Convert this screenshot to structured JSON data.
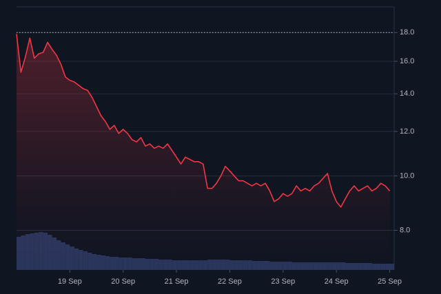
{
  "chart_data": {
    "type": "line",
    "log_scale": true,
    "grid": true,
    "series": [
      {
        "color": "#f23645",
        "values": [
          17.9,
          15.3,
          16.3,
          17.6,
          16.2,
          16.5,
          16.6,
          17.3,
          16.8,
          16.4,
          15.8,
          15.0,
          14.8,
          14.7,
          14.5,
          14.3,
          14.2,
          13.8,
          13.3,
          12.8,
          12.5,
          12.1,
          12.3,
          11.9,
          12.1,
          11.9,
          11.6,
          11.5,
          11.7,
          11.3,
          11.4,
          11.2,
          11.3,
          11.2,
          11.4,
          11.1,
          10.8,
          10.5,
          10.8,
          10.7,
          10.6,
          10.6,
          10.5,
          9.5,
          9.5,
          9.7,
          10.0,
          10.4,
          10.2,
          10.0,
          9.8,
          9.8,
          9.7,
          9.6,
          9.7,
          9.6,
          9.7,
          9.4,
          9.0,
          9.1,
          9.3,
          9.2,
          9.3,
          9.6,
          9.4,
          9.5,
          9.4,
          9.6,
          9.7,
          9.9,
          10.1,
          9.4,
          9.0,
          8.8,
          9.1,
          9.4,
          9.6,
          9.4,
          9.5,
          9.6,
          9.4,
          9.5,
          9.7,
          9.6,
          9.4
        ]
      }
    ],
    "volume": {
      "color": "#2e3b66",
      "values": [
        48,
        50,
        52,
        53,
        54,
        55,
        54,
        51,
        47,
        43,
        40,
        37,
        34,
        31,
        29,
        27,
        25,
        23,
        22,
        21,
        20,
        19,
        19,
        18,
        18,
        18,
        17,
        17,
        17,
        16,
        16,
        16,
        15,
        15,
        15,
        14,
        14,
        14,
        14,
        14,
        14,
        14,
        14,
        15,
        15,
        15,
        15,
        15,
        14,
        14,
        14,
        14,
        14,
        13,
        13,
        13,
        13,
        12,
        12,
        12,
        12,
        12,
        11,
        11,
        11,
        11,
        11,
        11,
        11,
        11,
        11,
        11,
        11,
        11,
        10,
        10,
        10,
        10,
        10,
        10,
        9,
        9,
        9,
        9,
        9
      ]
    },
    "reference_line": 18.0,
    "ylim": [
      6.8,
      20.0
    ],
    "yticks": [
      {
        "value": 8,
        "label": "8.0"
      },
      {
        "value": 10,
        "label": "10.0"
      },
      {
        "value": 12,
        "label": "12.0"
      },
      {
        "value": 14,
        "label": "14.0"
      },
      {
        "value": 16,
        "label": "16.0"
      },
      {
        "value": 18,
        "label": "18.0"
      }
    ],
    "xlim": [
      0,
      85
    ],
    "xticks": [
      {
        "value": 12,
        "label": "19 Sep"
      },
      {
        "value": 24,
        "label": "20 Sep"
      },
      {
        "value": 36,
        "label": "21 Sep"
      },
      {
        "value": 48,
        "label": "22 Sep"
      },
      {
        "value": 60,
        "label": "23 Sep"
      },
      {
        "value": 72,
        "label": "24 Sep"
      },
      {
        "value": 84,
        "label": "25 Sep"
      }
    ]
  }
}
